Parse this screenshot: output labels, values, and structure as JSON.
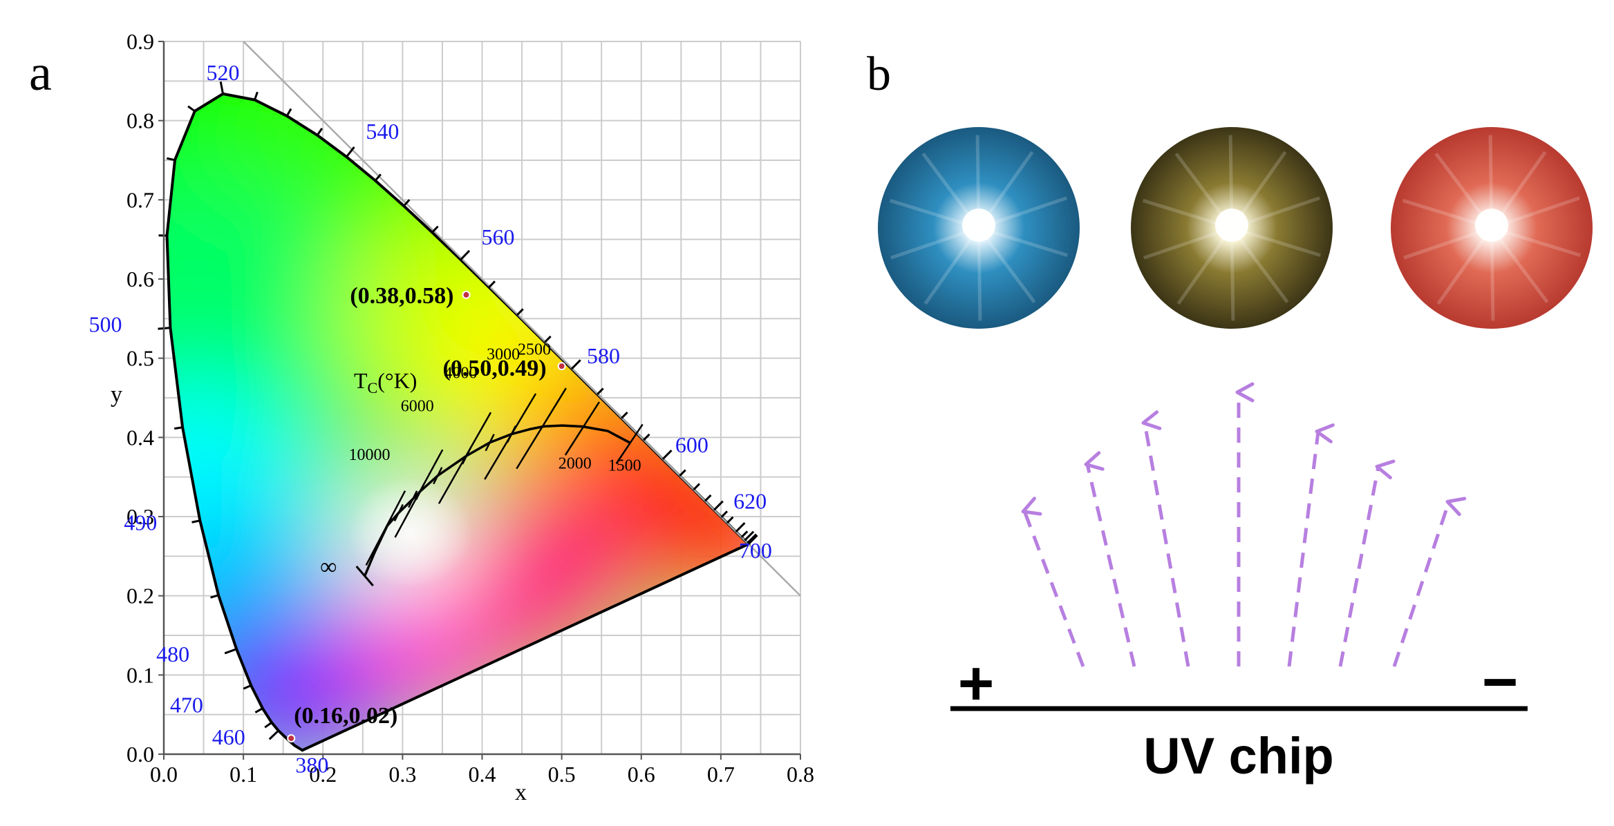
{
  "panel_a": {
    "label": "a",
    "xlabel": "x",
    "ylabel": "y",
    "x_ticks": [
      "0.0",
      "0.1",
      "0.2",
      "0.3",
      "0.4",
      "0.5",
      "0.6",
      "0.7",
      "0.8"
    ],
    "y_ticks": [
      "0.0",
      "0.1",
      "0.2",
      "0.3",
      "0.4",
      "0.5",
      "0.6",
      "0.7",
      "0.8",
      "0.9"
    ],
    "wavelength_labels": [
      {
        "text": "380",
        "x": 0.1741,
        "y": 0.005
      },
      {
        "text": "460",
        "x": 0.144,
        "y": 0.0297
      },
      {
        "text": "470",
        "x": 0.1241,
        "y": 0.0578
      },
      {
        "text": "480",
        "x": 0.0913,
        "y": 0.1327
      },
      {
        "text": "490",
        "x": 0.0454,
        "y": 0.295
      },
      {
        "text": "500",
        "x": 0.0082,
        "y": 0.5384
      },
      {
        "text": "520",
        "x": 0.0743,
        "y": 0.8338
      },
      {
        "text": "540",
        "x": 0.2296,
        "y": 0.7543
      },
      {
        "text": "560",
        "x": 0.3731,
        "y": 0.6245
      },
      {
        "text": "580",
        "x": 0.5125,
        "y": 0.4866
      },
      {
        "text": "600",
        "x": 0.627,
        "y": 0.3725
      },
      {
        "text": "620",
        "x": 0.6915,
        "y": 0.3083
      },
      {
        "text": "700",
        "x": 0.7347,
        "y": 0.2653
      }
    ],
    "tc_label": "T",
    "tc_sub": "C",
    "tc_unit": "(°K)",
    "cct_labels": [
      {
        "text": "10000",
        "x": 0.281,
        "y": 0.288
      },
      {
        "text": "6000",
        "x": 0.322,
        "y": 0.339
      },
      {
        "text": "4000",
        "x": 0.38,
        "y": 0.377
      },
      {
        "text": "3000",
        "x": 0.437,
        "y": 0.404
      },
      {
        "text": "2500",
        "x": 0.476,
        "y": 0.414
      },
      {
        "text": "2000",
        "x": 0.527,
        "y": 0.413
      },
      {
        "text": "1500",
        "x": 0.586,
        "y": 0.393
      },
      {
        "text": "∞",
        "x": 0.24,
        "y": 0.234
      }
    ],
    "annotated_points": [
      {
        "label": "(0.38,0.58)",
        "x": 0.38,
        "y": 0.58
      },
      {
        "label": "(0.50,0.49)",
        "x": 0.5,
        "y": 0.49
      },
      {
        "label": "(0.16,0.02)",
        "x": 0.16,
        "y": 0.02
      }
    ]
  },
  "panel_b": {
    "label": "b",
    "led_photos": [
      {
        "name": "blue-led",
        "rim": "#1a5a80",
        "mid": "#2f8fc0",
        "core": "#eaf8ff"
      },
      {
        "name": "yellow-led",
        "rim": "#3c3516",
        "mid": "#8a7a32",
        "core": "#fffbe0"
      },
      {
        "name": "red-led",
        "rim": "#b83a30",
        "mid": "#e06a55",
        "core": "#fff4ee"
      }
    ],
    "plus_sign": "+",
    "minus_sign": "−",
    "chip_label": "UV chip",
    "arrow_color": "#b77fe0"
  }
}
